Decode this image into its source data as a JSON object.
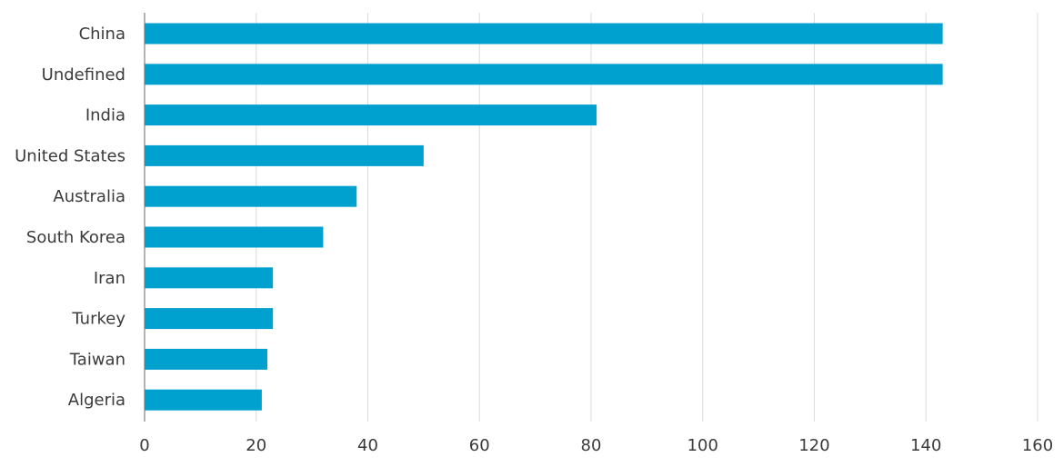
{
  "chart_data": {
    "type": "bar",
    "orientation": "horizontal",
    "title": "",
    "xlabel": "",
    "ylabel": "",
    "categories": [
      "China",
      "Undefined",
      "India",
      "United States",
      "Australia",
      "South Korea",
      "Iran",
      "Turkey",
      "Taiwan",
      "Algeria"
    ],
    "values": [
      143,
      143,
      81,
      50,
      38,
      32,
      23,
      23,
      22,
      21
    ],
    "xlim": [
      0,
      160
    ],
    "xticks": [
      0,
      20,
      40,
      60,
      80,
      100,
      120,
      140,
      160
    ],
    "grid": "vertical",
    "legend": "none",
    "bar_color": "#00A0CF"
  }
}
